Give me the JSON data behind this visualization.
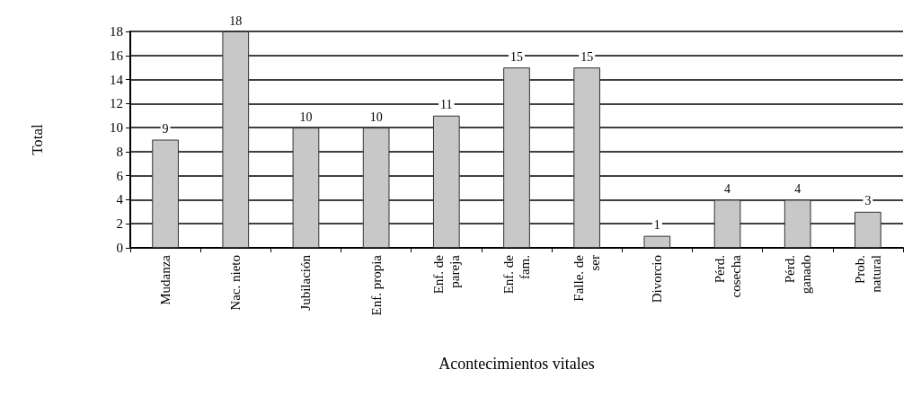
{
  "chart_data": {
    "type": "bar",
    "categories": [
      "Mudanza",
      "Nac. nieto",
      "Jubilación",
      "Enf. propia",
      "Enf. de\npareja",
      "Enf. de\nfam.",
      "Falle. de\nser",
      "Divorcio",
      "Pérd.\ncosecha",
      "Pérd.\nganado",
      "Prob.\nnatural"
    ],
    "values": [
      9,
      18,
      10,
      10,
      11,
      15,
      15,
      1,
      4,
      4,
      3
    ],
    "color": "#c8c8c8",
    "xlabel": "Acontecimientos vitales",
    "ylabel": "Total",
    "ylim": [
      0,
      18
    ],
    "yticks": [
      0,
      2,
      4,
      6,
      8,
      10,
      12,
      14,
      16,
      18
    ],
    "grid": "y",
    "data_labels": true
  }
}
